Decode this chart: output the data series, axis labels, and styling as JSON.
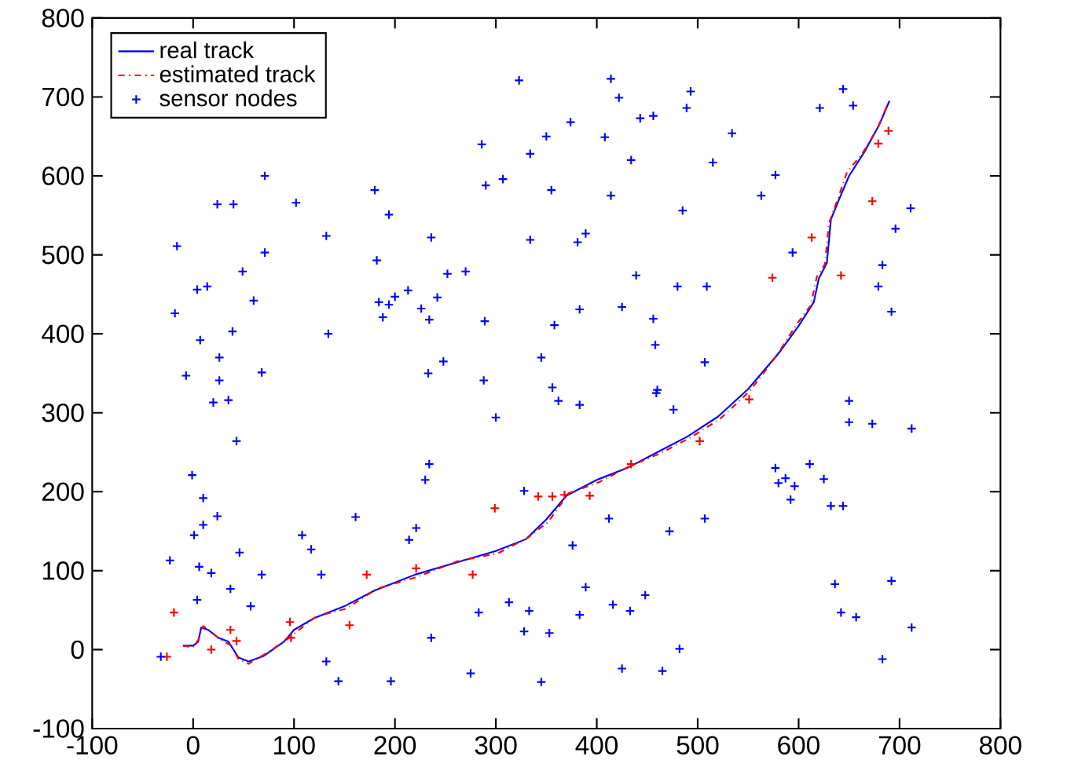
{
  "chart_data": {
    "type": "line",
    "legend": "top left",
    "grid": false,
    "xlim": [
      -100,
      800
    ],
    "ylim": [
      -100,
      800
    ],
    "xticks": [
      -100,
      0,
      100,
      200,
      300,
      400,
      500,
      600,
      700,
      800
    ],
    "yticks": [
      -100,
      0,
      100,
      200,
      300,
      400,
      500,
      600,
      700,
      800
    ],
    "series": [
      {
        "name": "real track",
        "type": "line",
        "color": "#0000ff",
        "line_style": "solid",
        "marker": "none",
        "x": [
          -10,
          0,
          5,
          8,
          15,
          25,
          35,
          45,
          55,
          70,
          90,
          100,
          120,
          150,
          180,
          220,
          260,
          300,
          330,
          350,
          370,
          400,
          430,
          460,
          490,
          520,
          550,
          580,
          600,
          615,
          620,
          628,
          632,
          640,
          650,
          665,
          680,
          690
        ],
        "values": [
          5,
          5,
          10,
          28,
          25,
          15,
          10,
          -10,
          -15,
          -8,
          10,
          25,
          40,
          55,
          75,
          95,
          110,
          125,
          140,
          165,
          195,
          215,
          230,
          250,
          270,
          295,
          330,
          375,
          410,
          440,
          470,
          490,
          545,
          570,
          600,
          630,
          665,
          695
        ]
      },
      {
        "name": "estimated track",
        "type": "line",
        "color": "#ff0000",
        "line_style": "dashdot",
        "marker": "none",
        "x": [
          -10,
          0,
          5,
          10,
          18,
          28,
          38,
          45,
          55,
          72,
          92,
          102,
          122,
          152,
          182,
          222,
          262,
          302,
          332,
          352,
          372,
          402,
          432,
          462,
          492,
          522,
          552,
          578,
          598,
          612,
          618,
          626,
          630,
          640,
          648,
          663,
          678,
          688
        ],
        "values": [
          5,
          3,
          12,
          30,
          22,
          12,
          5,
          -12,
          -18,
          -5,
          12,
          22,
          42,
          52,
          77,
          92,
          112,
          122,
          142,
          162,
          198,
          212,
          232,
          248,
          268,
          292,
          328,
          372,
          412,
          436,
          472,
          488,
          540,
          575,
          605,
          628,
          660,
          690
        ]
      },
      {
        "type": "scatter",
        "color": "#ff0000",
        "marker": "cross",
        "x": [
          -26,
          -19,
          37,
          43,
          18,
          96,
          97,
          155,
          172,
          221,
          277,
          299,
          342,
          356,
          368,
          393,
          434,
          502,
          551,
          689,
          679,
          673,
          613,
          574,
          642
        ],
        "values": [
          -9,
          47,
          25,
          11,
          0,
          35,
          15,
          31,
          95,
          103,
          95,
          179,
          194,
          194,
          196,
          195,
          235,
          264,
          317,
          657,
          641,
          568,
          522,
          471,
          474
        ]
      },
      {
        "name": "sensor nodes",
        "type": "scatter",
        "color": "#0000ff",
        "marker": "cross",
        "x": [
          323,
          286,
          350,
          334,
          290,
          307,
          355,
          71,
          24,
          40,
          102,
          180,
          194,
          -16,
          71,
          132,
          236,
          334,
          182,
          49,
          252,
          270,
          4,
          14,
          60,
          -18,
          184,
          200,
          213,
          194,
          226,
          242,
          188,
          234,
          289,
          358,
          7,
          39,
          134,
          26,
          345,
          -7,
          26,
          68,
          248,
          233,
          288,
          356,
          414,
          422,
          493,
          489,
          644,
          621,
          654,
          374,
          443,
          456,
          408,
          534,
          434,
          515,
          577,
          563,
          414,
          485,
          711,
          696,
          389,
          381,
          594,
          683,
          439,
          480,
          509,
          679,
          383,
          425,
          692,
          456,
          458,
          507,
          460,
          20,
          35,
          43,
          -1,
          10,
          24,
          10,
          1,
          -23,
          46,
          6,
          18,
          68,
          37,
          4,
          57,
          -32,
          132,
          144,
          196,
          108,
          117,
          127,
          161,
          234,
          230,
          214,
          221,
          300,
          362,
          236,
          313,
          333,
          283,
          328,
          353,
          275,
          345,
          328,
          383,
          459,
          476,
          650,
          650,
          673,
          712,
          577,
          580,
          587,
          596,
          592,
          611,
          625,
          632,
          644,
          412,
          507,
          472,
          376,
          389,
          636,
          692,
          416,
          433,
          448,
          383,
          642,
          657,
          712,
          482,
          425,
          465,
          683
        ],
        "values": [
          721,
          640,
          650,
          628,
          588,
          596,
          582,
          600,
          564,
          564,
          566,
          582,
          551,
          511,
          503,
          524,
          522,
          519,
          493,
          479,
          476,
          479,
          456,
          460,
          442,
          426,
          440,
          447,
          455,
          437,
          432,
          446,
          421,
          418,
          416,
          411,
          392,
          403,
          400,
          370,
          370,
          347,
          341,
          351,
          365,
          350,
          341,
          332,
          723,
          699,
          707,
          686,
          710,
          686,
          689,
          668,
          673,
          676,
          649,
          654,
          620,
          617,
          601,
          575,
          575,
          556,
          559,
          533,
          527,
          516,
          503,
          487,
          474,
          460,
          460,
          460,
          431,
          434,
          428,
          419,
          386,
          364,
          329,
          313,
          316,
          264,
          221,
          192,
          169,
          158,
          145,
          113,
          123,
          105,
          97,
          95,
          77,
          63,
          55,
          -9,
          -15,
          -40,
          -40,
          145,
          127,
          95,
          168,
          235,
          215,
          139,
          154,
          294,
          315,
          15,
          60,
          49,
          47,
          23,
          21,
          -30,
          -41,
          201,
          310,
          325,
          304,
          315,
          288,
          286,
          280,
          230,
          211,
          217,
          207,
          190,
          235,
          216,
          182,
          182,
          166,
          166,
          150,
          132,
          79,
          83,
          87,
          57,
          49,
          69,
          44,
          47,
          41,
          28,
          1,
          -24,
          -27,
          -12
        ]
      }
    ]
  }
}
